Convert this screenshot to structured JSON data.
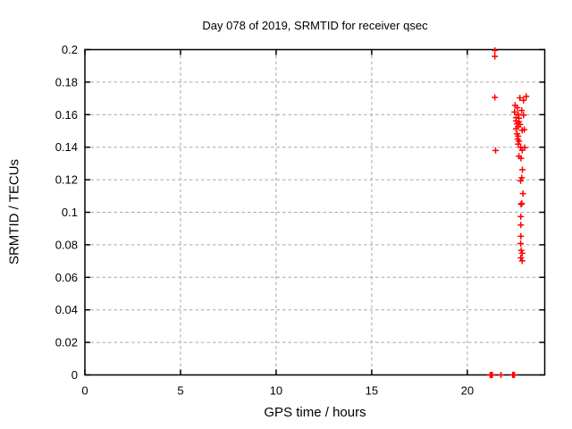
{
  "title": "Day 078 of 2019, SRMTID for receiver qsec",
  "colors": {
    "marker": "#ff0000",
    "grid": "#a6a6a6",
    "border": "#000000",
    "text": "#000000",
    "background": "#ffffff"
  },
  "chart_data": {
    "type": "scatter",
    "title": "Day 078 of 2019, SRMTID for receiver qsec",
    "xlabel": "GPS time / hours",
    "ylabel": "SRMTID / TECUs",
    "xlim": [
      0,
      24.05
    ],
    "ylim": [
      0,
      0.2
    ],
    "grid": true,
    "legend": "none",
    "marker": "plus",
    "x_ticks": {
      "values": [
        0,
        5,
        10,
        15,
        20
      ],
      "labels": [
        "0",
        "5",
        "10",
        "15",
        "20"
      ]
    },
    "y_ticks": {
      "values": [
        0,
        0.02,
        0.04,
        0.06,
        0.08,
        0.1,
        0.12,
        0.14,
        0.16,
        0.18,
        0.2
      ],
      "labels": [
        "0",
        "0.02",
        "0.04",
        "0.06",
        "0.08",
        "0.1",
        "0.12",
        "0.14",
        "0.16",
        "0.18",
        "0.2"
      ]
    },
    "points": [
      [
        21.44,
        0.1995
      ],
      [
        21.44,
        0.1958
      ],
      [
        21.44,
        0.1706
      ],
      [
        21.48,
        0.138
      ],
      [
        22.75,
        0.1703
      ],
      [
        22.94,
        0.1688
      ],
      [
        23.08,
        0.1712
      ],
      [
        22.5,
        0.1657
      ],
      [
        22.61,
        0.1643
      ],
      [
        22.85,
        0.1626
      ],
      [
        22.47,
        0.1616
      ],
      [
        22.66,
        0.1602
      ],
      [
        22.94,
        0.1597
      ],
      [
        22.55,
        0.1582
      ],
      [
        22.7,
        0.1578
      ],
      [
        22.55,
        0.1562
      ],
      [
        22.7,
        0.1556
      ],
      [
        22.6,
        0.1544
      ],
      [
        22.76,
        0.154
      ],
      [
        22.66,
        0.1526
      ],
      [
        22.55,
        0.1513
      ],
      [
        22.87,
        0.1504
      ],
      [
        22.98,
        0.1508
      ],
      [
        22.6,
        0.1482
      ],
      [
        22.66,
        0.1468
      ],
      [
        22.63,
        0.145
      ],
      [
        22.71,
        0.1437
      ],
      [
        22.66,
        0.1419
      ],
      [
        22.79,
        0.14
      ],
      [
        23.0,
        0.1397
      ],
      [
        22.87,
        0.1381
      ],
      [
        22.7,
        0.1345
      ],
      [
        22.81,
        0.1332
      ],
      [
        22.88,
        0.1262
      ],
      [
        22.85,
        0.1212
      ],
      [
        22.79,
        0.1194
      ],
      [
        22.91,
        0.1115
      ],
      [
        22.85,
        0.1054
      ],
      [
        22.81,
        0.1049
      ],
      [
        22.8,
        0.0973
      ],
      [
        22.8,
        0.0922
      ],
      [
        22.8,
        0.0852
      ],
      [
        22.79,
        0.0808
      ],
      [
        22.82,
        0.0766
      ],
      [
        22.87,
        0.0748
      ],
      [
        22.8,
        0.072
      ],
      [
        22.87,
        0.0701
      ],
      [
        21.2,
        0.0
      ],
      [
        21.235,
        0.0
      ],
      [
        21.27,
        0.0
      ],
      [
        21.305,
        0.0
      ],
      [
        21.76,
        0.0
      ],
      [
        22.38,
        0.0
      ],
      [
        22.42,
        0.0
      ],
      [
        22.46,
        0.0
      ]
    ]
  }
}
